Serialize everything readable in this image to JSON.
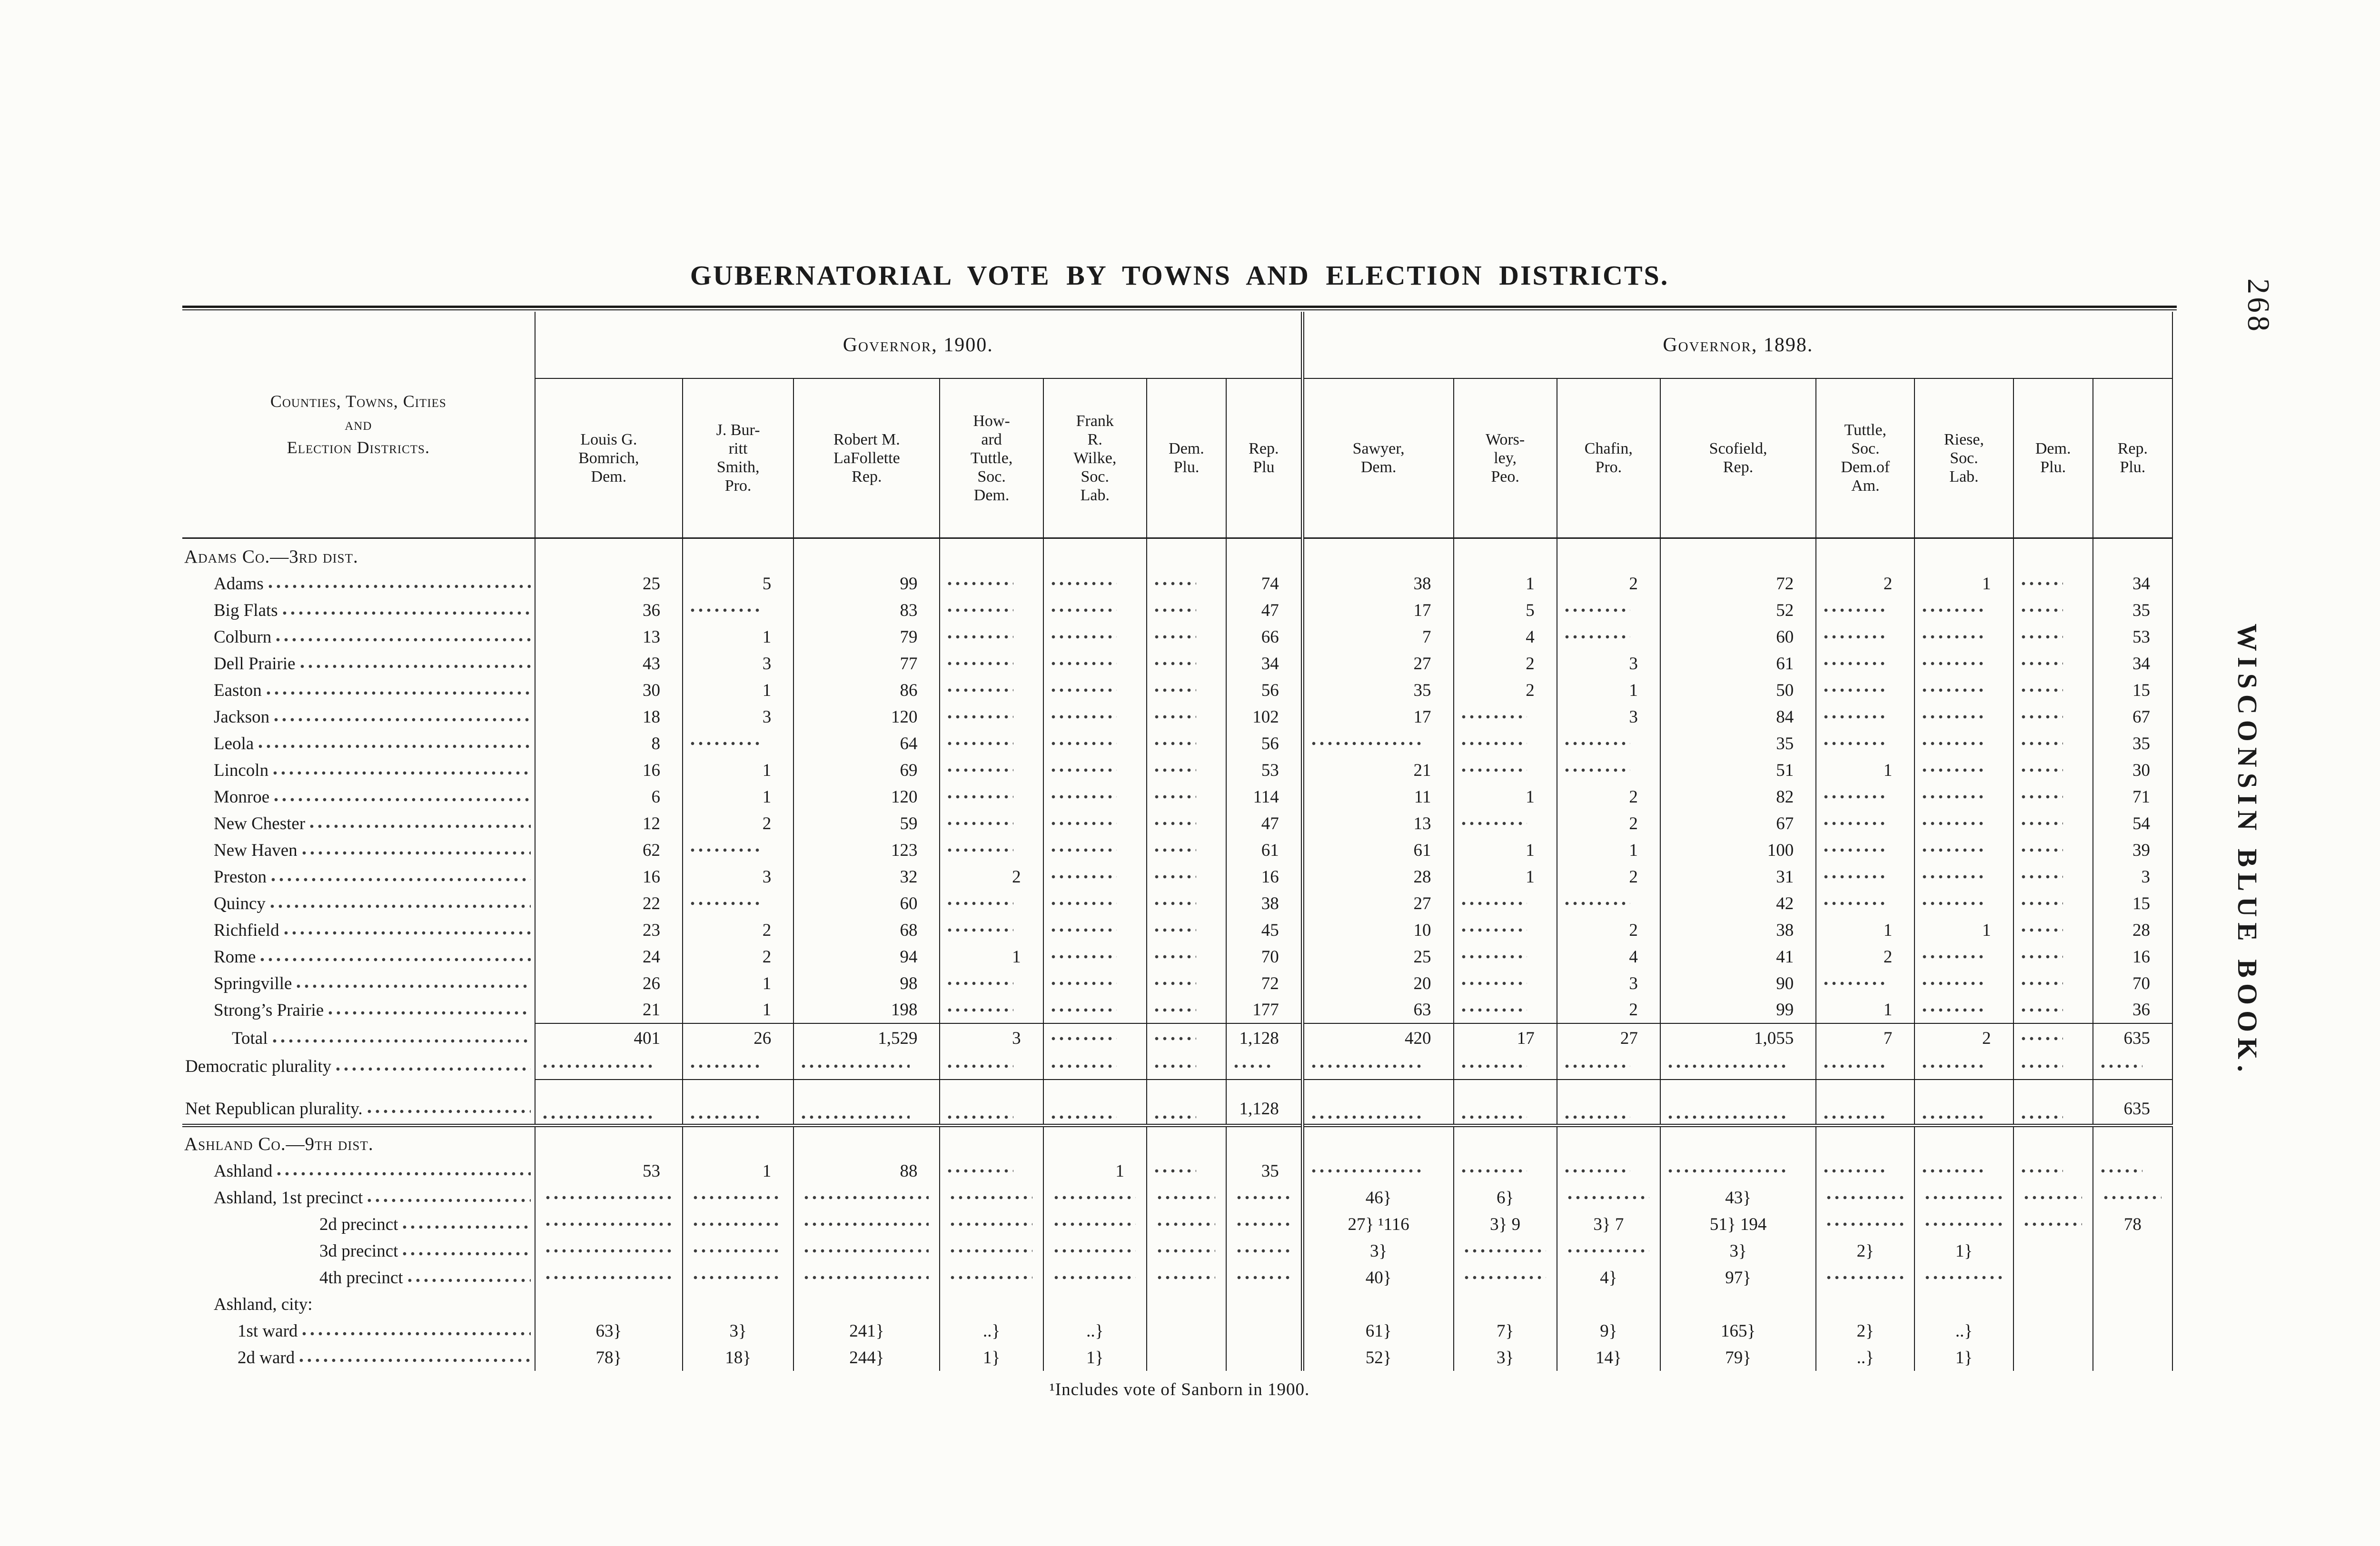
{
  "page": {
    "number": "268",
    "side_title": "WISCONSIN BLUE BOOK.",
    "title": "GUBERNATORIAL VOTE BY TOWNS AND ELECTION DISTRICTS.",
    "footnote": "¹Includes vote of Sanborn in 1900."
  },
  "table": {
    "row_header": [
      "Counties, Towns, Cities",
      "and",
      "Election Districts."
    ],
    "groups": [
      {
        "label": "Governor, 1900.",
        "columns": [
          [
            "Louis G.",
            "Bomrich,",
            "Dem."
          ],
          [
            "J. Bur-",
            "ritt",
            "Smith,",
            "Pro."
          ],
          [
            "Robert M.",
            "LaFollette",
            "Rep."
          ],
          [
            "How-",
            "ard",
            "Tuttle,",
            "Soc.",
            "Dem."
          ],
          [
            "Frank",
            "R.",
            "Wilke,",
            "Soc.",
            "Lab."
          ],
          [
            "Dem.",
            "Plu."
          ],
          [
            "Rep.",
            "Plu"
          ]
        ]
      },
      {
        "label": "Governor, 1898.",
        "columns": [
          [
            "Sawyer,",
            "Dem."
          ],
          [
            "Wors-",
            "ley,",
            "Peo."
          ],
          [
            "Chafin,",
            "Pro."
          ],
          [
            "Scofield,",
            "Rep."
          ],
          [
            "Tuttle,",
            "Soc.",
            "Dem.of",
            "Am."
          ],
          [
            "Riese,",
            "Soc.",
            "Lab."
          ],
          [
            "Dem.",
            "Plu."
          ],
          [
            "Rep.",
            "Plu."
          ]
        ]
      }
    ],
    "rows": [
      {
        "type": "section",
        "label": "Adams Co.—3rd dist."
      },
      {
        "type": "town",
        "label": "Adams",
        "cells": [
          "25",
          "5",
          "99",
          ".",
          ".",
          ".",
          "74",
          "38",
          "1",
          "2",
          "72",
          "2",
          "1",
          ".",
          "34"
        ]
      },
      {
        "type": "town",
        "label": "Big Flats",
        "cells": [
          "36",
          ".",
          "83",
          ".",
          ".",
          ".",
          "47",
          "17",
          "5",
          ".",
          "52",
          ".",
          ".",
          ".",
          "35"
        ]
      },
      {
        "type": "town",
        "label": "Colburn",
        "cells": [
          "13",
          "1",
          "79",
          ".",
          ".",
          ".",
          "66",
          "7",
          "4",
          ".",
          "60",
          ".",
          ".",
          ".",
          "53"
        ]
      },
      {
        "type": "town",
        "label": "Dell Prairie",
        "cells": [
          "43",
          "3",
          "77",
          ".",
          ".",
          ".",
          "34",
          "27",
          "2",
          "3",
          "61",
          ".",
          ".",
          ".",
          "34"
        ]
      },
      {
        "type": "town",
        "label": "Easton",
        "cells": [
          "30",
          "1",
          "86",
          ".",
          ".",
          ".",
          "56",
          "35",
          "2",
          "1",
          "50",
          ".",
          ".",
          ".",
          "15"
        ]
      },
      {
        "type": "town",
        "label": "Jackson",
        "cells": [
          "18",
          "3",
          "120",
          ".",
          ".",
          ".",
          "102",
          "17",
          ".",
          "3",
          "84",
          ".",
          ".",
          ".",
          "67"
        ]
      },
      {
        "type": "town",
        "label": "Leola",
        "cells": [
          "8",
          ".",
          "64",
          ".",
          ".",
          ".",
          "56",
          ".",
          ".",
          ".",
          "35",
          ".",
          ".",
          ".",
          "35"
        ]
      },
      {
        "type": "town",
        "label": "Lincoln",
        "cells": [
          "16",
          "1",
          "69",
          ".",
          ".",
          ".",
          "53",
          "21",
          ".",
          ".",
          "51",
          "1",
          ".",
          ".",
          "30"
        ]
      },
      {
        "type": "town",
        "label": "Monroe",
        "cells": [
          "6",
          "1",
          "120",
          ".",
          ".",
          ".",
          "114",
          "11",
          "1",
          "2",
          "82",
          ".",
          ".",
          ".",
          "71"
        ]
      },
      {
        "type": "town",
        "label": "New Chester",
        "cells": [
          "12",
          "2",
          "59",
          ".",
          ".",
          ".",
          "47",
          "13",
          ".",
          "2",
          "67",
          ".",
          ".",
          ".",
          "54"
        ]
      },
      {
        "type": "town",
        "label": "New Haven",
        "cells": [
          "62",
          ".",
          "123",
          ".",
          ".",
          ".",
          "61",
          "61",
          "1",
          "1",
          "100",
          ".",
          ".",
          ".",
          "39"
        ]
      },
      {
        "type": "town",
        "label": "Preston",
        "cells": [
          "16",
          "3",
          "32",
          "2",
          ".",
          ".",
          "16",
          "28",
          "1",
          "2",
          "31",
          ".",
          ".",
          ".",
          "3"
        ]
      },
      {
        "type": "town",
        "label": "Quincy",
        "cells": [
          "22",
          ".",
          "60",
          ".",
          ".",
          ".",
          "38",
          "27",
          ".",
          ".",
          "42",
          ".",
          ".",
          ".",
          "15"
        ]
      },
      {
        "type": "town",
        "label": "Richfield",
        "cells": [
          "23",
          "2",
          "68",
          ".",
          ".",
          ".",
          "45",
          "10",
          ".",
          "2",
          "38",
          "1",
          "1",
          ".",
          "28"
        ]
      },
      {
        "type": "town",
        "label": "Rome",
        "cells": [
          "24",
          "2",
          "94",
          "1",
          ".",
          ".",
          "70",
          "25",
          ".",
          "4",
          "41",
          "2",
          ".",
          ".",
          "16"
        ]
      },
      {
        "type": "town",
        "label": "Springville",
        "cells": [
          "26",
          "1",
          "98",
          ".",
          ".",
          ".",
          "72",
          "20",
          ".",
          "3",
          "90",
          ".",
          ".",
          ".",
          "70"
        ]
      },
      {
        "type": "town",
        "label": "Strong’s Prairie",
        "cells": [
          "21",
          "1",
          "198",
          ".",
          ".",
          ".",
          "177",
          "63",
          ".",
          "2",
          "99",
          "1",
          ".",
          ".",
          "36"
        ]
      },
      {
        "type": "total",
        "label": "Total",
        "rule_above": true,
        "cells": [
          "401",
          "26",
          "1,529",
          "3",
          ".",
          ".",
          "1,128",
          "420",
          "17",
          "27",
          "1,055",
          "7",
          "2",
          ".",
          "635"
        ]
      },
      {
        "type": "left",
        "label": "Democratic plurality",
        "rule_below": true,
        "cells": [
          ".",
          ".",
          ".",
          ".",
          ".",
          ".",
          ".",
          ".",
          ".",
          ".",
          ".",
          ".",
          ".",
          ".",
          "."
        ]
      },
      {
        "type": "left",
        "label": "Net Republican plurality.",
        "tall": true,
        "cells": [
          ".",
          ".",
          ".",
          ".",
          ".",
          ".",
          "1,128",
          ".",
          ".",
          ".",
          ".",
          ".",
          ".",
          ".",
          "635"
        ]
      },
      {
        "type": "section",
        "label": "Ashland Co.—9th dist.",
        "dbl_rule_above": true
      },
      {
        "type": "town",
        "label": "Ashland",
        "cells": [
          "53",
          "1",
          "88",
          ".",
          "1",
          ".",
          "35",
          ".",
          ".",
          ".",
          ".",
          ".",
          ".",
          ".",
          "."
        ]
      },
      {
        "type": "town",
        "label": "Ashland, 1st precinct",
        "braced": true,
        "cells": [
          ".",
          ".",
          ".",
          ".",
          ".",
          ".",
          ".",
          "46}",
          "6}",
          ".",
          "43}",
          ".",
          ".",
          ".",
          "."
        ]
      },
      {
        "type": "subprecinct",
        "label": "2d precinct",
        "cells": [
          ".",
          ".",
          ".",
          ".",
          ".",
          ".",
          ".",
          "27} ¹116",
          "3} 9",
          "3} 7",
          "51} 194",
          ".",
          ".",
          ".",
          "78"
        ]
      },
      {
        "type": "subprecinct",
        "label": "3d precinct",
        "cells": [
          ".",
          ".",
          ".",
          ".",
          ".",
          ".",
          ".",
          "3}",
          ".",
          ".",
          "3}",
          "2}",
          "1}",
          "",
          ""
        ]
      },
      {
        "type": "subprecinct",
        "label": "4th precinct",
        "cells": [
          ".",
          ".",
          ".",
          ".",
          ".",
          ".",
          ".",
          "40}",
          ".",
          "4}",
          "97}",
          ".",
          ".",
          "",
          ""
        ]
      },
      {
        "type": "cityline",
        "label": "Ashland, city:"
      },
      {
        "type": "ward",
        "label": "1st ward",
        "cells": [
          "63}",
          "3}",
          "241}",
          "..}",
          "..}",
          "",
          "",
          "61}",
          "7}",
          "9}",
          "165}",
          "2}",
          "..}",
          "",
          ""
        ]
      },
      {
        "type": "ward",
        "label": "2d ward",
        "cells": [
          "78}",
          "18}",
          "244}",
          "1}",
          "1}",
          "",
          "",
          "52}",
          "3}",
          "14}",
          "79}",
          "..}",
          "1}",
          "",
          ""
        ]
      }
    ]
  }
}
